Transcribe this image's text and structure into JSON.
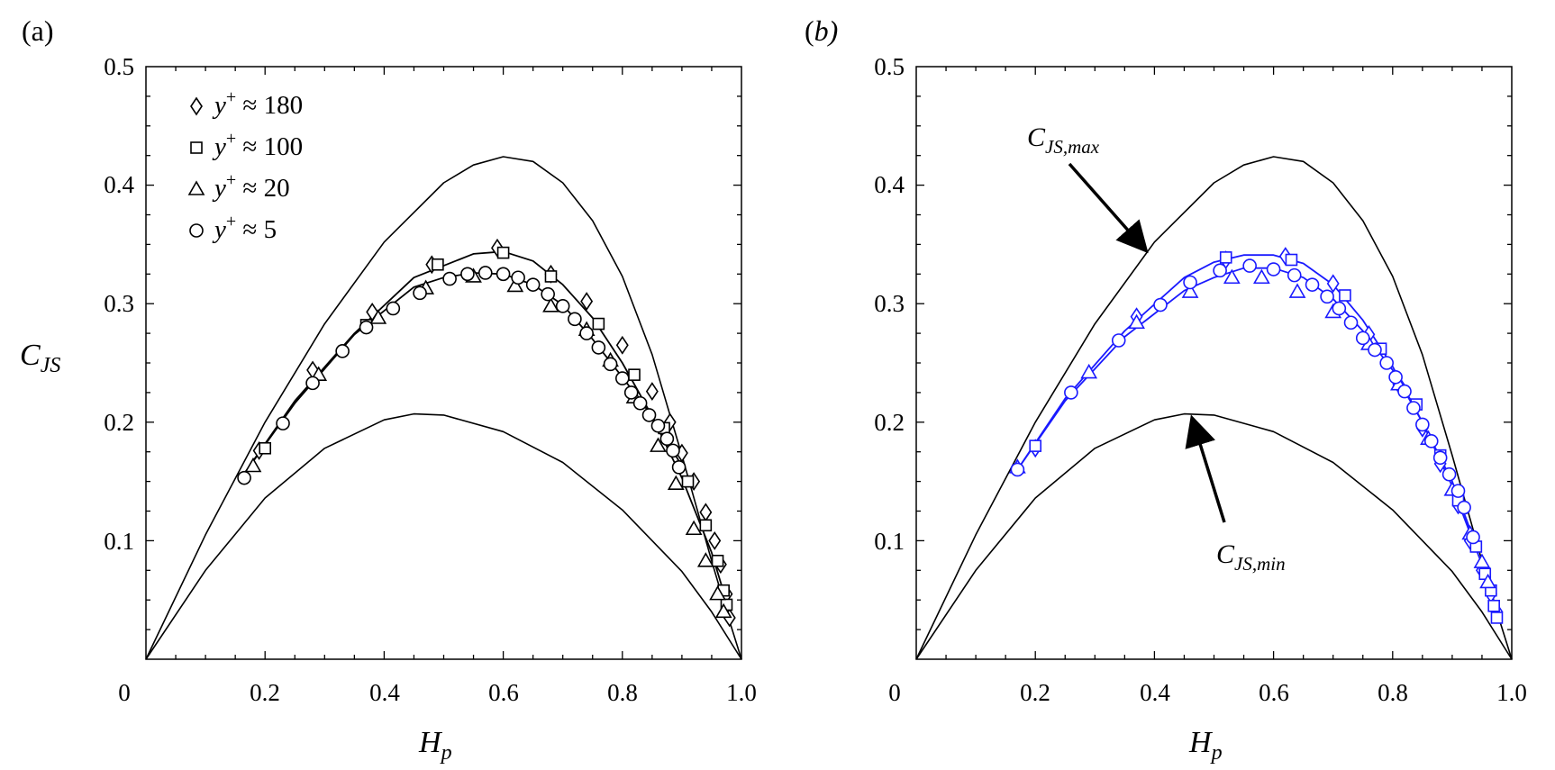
{
  "chart_data": [
    {
      "type": "line",
      "panel_label": "(a)",
      "title": "",
      "xlabel": "H",
      "xlabel_sub": "p",
      "ylabel": "C",
      "ylabel_sub": "JS",
      "xlim": [
        0,
        1.0
      ],
      "ylim": [
        0,
        0.5
      ],
      "xticks": [
        "0",
        "0.2",
        "0.4",
        "0.6",
        "0.8",
        "1.0"
      ],
      "yticks": [
        "0.1",
        "0.2",
        "0.3",
        "0.4",
        "0.5"
      ],
      "grid": false,
      "legend_position": "top-left",
      "marker_color": "#000000",
      "bounds": [
        {
          "name": "C_JS,max",
          "x": [
            0,
            0.1,
            0.2,
            0.3,
            0.4,
            0.5,
            0.55,
            0.6,
            0.65,
            0.7,
            0.75,
            0.8,
            0.85,
            0.9,
            0.95,
            0.98,
            1.0
          ],
          "y": [
            0,
            0.105,
            0.2,
            0.283,
            0.352,
            0.402,
            0.417,
            0.424,
            0.42,
            0.402,
            0.37,
            0.323,
            0.257,
            0.172,
            0.083,
            0.032,
            0
          ]
        },
        {
          "name": "C_JS,min",
          "x": [
            0,
            0.1,
            0.2,
            0.3,
            0.4,
            0.45,
            0.5,
            0.6,
            0.7,
            0.8,
            0.9,
            0.95,
            1.0
          ],
          "y": [
            0,
            0.075,
            0.136,
            0.178,
            0.202,
            0.207,
            0.206,
            0.192,
            0.166,
            0.126,
            0.074,
            0.04,
            0
          ]
        }
      ],
      "series": [
        {
          "name": "y⁺ ≈ 180",
          "label_prefix": "y",
          "label_sup": "+",
          "label_suffix": " ≈ 180",
          "marker": "diamond",
          "x": [
            0.19,
            0.28,
            0.38,
            0.48,
            0.59,
            0.68,
            0.74,
            0.8,
            0.85,
            0.88,
            0.9,
            0.92,
            0.94,
            0.955,
            0.965,
            0.975,
            0.98
          ],
          "y": [
            0.176,
            0.244,
            0.293,
            0.333,
            0.347,
            0.325,
            0.302,
            0.265,
            0.226,
            0.2,
            0.174,
            0.15,
            0.124,
            0.1,
            0.08,
            0.055,
            0.035
          ]
        },
        {
          "name": "y⁺ ≈ 100",
          "label_prefix": "y",
          "label_sup": "+",
          "label_suffix": " ≈ 100",
          "marker": "square",
          "x": [
            0.2,
            0.37,
            0.49,
            0.6,
            0.68,
            0.76,
            0.82,
            0.87,
            0.91,
            0.94,
            0.96,
            0.97,
            0.975
          ],
          "y": [
            0.178,
            0.282,
            0.333,
            0.343,
            0.323,
            0.283,
            0.24,
            0.195,
            0.15,
            0.113,
            0.083,
            0.058,
            0.046
          ]
        },
        {
          "name": "y⁺ ≈ 20",
          "label_prefix": "y",
          "label_sup": "+",
          "label_suffix": " ≈ 20",
          "marker": "triangle",
          "x": [
            0.18,
            0.29,
            0.39,
            0.47,
            0.55,
            0.62,
            0.68,
            0.74,
            0.78,
            0.82,
            0.86,
            0.89,
            0.92,
            0.94,
            0.96,
            0.97
          ],
          "y": [
            0.163,
            0.24,
            0.288,
            0.313,
            0.323,
            0.315,
            0.298,
            0.278,
            0.252,
            0.221,
            0.18,
            0.148,
            0.11,
            0.083,
            0.055,
            0.04
          ]
        },
        {
          "name": "y⁺ ≈ 5",
          "label_prefix": "y",
          "label_sup": "+",
          "label_suffix": " ≈ 5",
          "marker": "circle",
          "x": [
            0.165,
            0.23,
            0.28,
            0.33,
            0.37,
            0.415,
            0.46,
            0.51,
            0.54,
            0.57,
            0.6,
            0.625,
            0.65,
            0.675,
            0.7,
            0.72,
            0.74,
            0.76,
            0.78,
            0.8,
            0.815,
            0.83,
            0.845,
            0.86,
            0.875,
            0.885,
            0.895
          ],
          "y": [
            0.153,
            0.199,
            0.233,
            0.26,
            0.28,
            0.296,
            0.309,
            0.321,
            0.325,
            0.326,
            0.325,
            0.322,
            0.316,
            0.308,
            0.298,
            0.287,
            0.275,
            0.263,
            0.249,
            0.237,
            0.225,
            0.216,
            0.206,
            0.197,
            0.186,
            0.176,
            0.162
          ]
        }
      ],
      "fit_curves": [
        {
          "x": [
            0.16,
            0.25,
            0.35,
            0.45,
            0.55,
            0.6,
            0.65,
            0.7,
            0.75,
            0.8,
            0.85,
            0.9,
            0.95,
            0.98
          ],
          "y": [
            0.153,
            0.218,
            0.275,
            0.322,
            0.342,
            0.344,
            0.336,
            0.316,
            0.288,
            0.25,
            0.205,
            0.153,
            0.09,
            0.04
          ]
        },
        {
          "x": [
            0.16,
            0.25,
            0.35,
            0.45,
            0.5,
            0.55,
            0.6,
            0.65,
            0.7,
            0.75,
            0.8,
            0.85,
            0.9
          ],
          "y": [
            0.153,
            0.216,
            0.274,
            0.314,
            0.322,
            0.326,
            0.325,
            0.316,
            0.299,
            0.27,
            0.238,
            0.205,
            0.163
          ]
        }
      ],
      "annotations": []
    },
    {
      "type": "line",
      "panel_label": "b)",
      "title": "",
      "xlabel": "H",
      "xlabel_sub": "p",
      "ylabel": "",
      "ylabel_sub": "",
      "xlim": [
        0,
        1.0
      ],
      "ylim": [
        0,
        0.5
      ],
      "xticks": [
        "0",
        "0.2",
        "0.4",
        "0.6",
        "0.8",
        "1.0"
      ],
      "yticks": [
        "0.1",
        "0.2",
        "0.3",
        "0.4",
        "0.5"
      ],
      "grid": false,
      "marker_color": "#1a1aff",
      "bounds": [
        {
          "name": "C_JS,max",
          "x": [
            0,
            0.1,
            0.2,
            0.3,
            0.4,
            0.5,
            0.55,
            0.6,
            0.65,
            0.7,
            0.75,
            0.8,
            0.85,
            0.9,
            0.95,
            0.98,
            1.0
          ],
          "y": [
            0,
            0.105,
            0.2,
            0.283,
            0.352,
            0.402,
            0.417,
            0.424,
            0.42,
            0.402,
            0.37,
            0.323,
            0.257,
            0.172,
            0.083,
            0.032,
            0
          ]
        },
        {
          "name": "C_JS,min",
          "x": [
            0,
            0.1,
            0.2,
            0.3,
            0.4,
            0.45,
            0.5,
            0.6,
            0.7,
            0.8,
            0.9,
            0.95,
            1.0
          ],
          "y": [
            0,
            0.075,
            0.136,
            0.178,
            0.202,
            0.207,
            0.206,
            0.192,
            0.166,
            0.126,
            0.074,
            0.04,
            0
          ]
        }
      ],
      "series": [
        {
          "name": "y⁺ ≈ 180",
          "marker": "diamond",
          "x": [
            0.2,
            0.37,
            0.52,
            0.62,
            0.7,
            0.76,
            0.81,
            0.85,
            0.88,
            0.91,
            0.93,
            0.95,
            0.965,
            0.975
          ],
          "y": [
            0.178,
            0.289,
            0.337,
            0.34,
            0.317,
            0.274,
            0.232,
            0.195,
            0.165,
            0.13,
            0.1,
            0.075,
            0.055,
            0.04
          ]
        },
        {
          "name": "y⁺ ≈ 100",
          "marker": "square",
          "x": [
            0.2,
            0.52,
            0.63,
            0.72,
            0.78,
            0.84,
            0.88,
            0.91,
            0.94,
            0.955,
            0.965,
            0.97,
            0.975
          ],
          "y": [
            0.18,
            0.339,
            0.337,
            0.307,
            0.262,
            0.215,
            0.172,
            0.134,
            0.095,
            0.072,
            0.058,
            0.045,
            0.035
          ]
        },
        {
          "name": "y⁺ ≈ 20",
          "marker": "triangle",
          "x": [
            0.17,
            0.29,
            0.37,
            0.46,
            0.53,
            0.58,
            0.64,
            0.7,
            0.76,
            0.81,
            0.86,
            0.9,
            0.93,
            0.95,
            0.96
          ],
          "y": [
            0.162,
            0.242,
            0.284,
            0.31,
            0.322,
            0.322,
            0.31,
            0.293,
            0.266,
            0.232,
            0.186,
            0.143,
            0.106,
            0.082,
            0.065
          ]
        },
        {
          "name": "y⁺ ≈ 5",
          "marker": "circle",
          "x": [
            0.17,
            0.26,
            0.34,
            0.41,
            0.46,
            0.51,
            0.56,
            0.6,
            0.635,
            0.665,
            0.69,
            0.71,
            0.73,
            0.75,
            0.77,
            0.79,
            0.805,
            0.82,
            0.835,
            0.85,
            0.865,
            0.88,
            0.895,
            0.91,
            0.92,
            0.935
          ],
          "y": [
            0.16,
            0.225,
            0.269,
            0.299,
            0.318,
            0.328,
            0.332,
            0.329,
            0.324,
            0.316,
            0.306,
            0.296,
            0.284,
            0.271,
            0.261,
            0.25,
            0.238,
            0.226,
            0.212,
            0.198,
            0.184,
            0.17,
            0.156,
            0.142,
            0.128,
            0.103
          ]
        }
      ],
      "fit_curves": [
        {
          "x": [
            0.17,
            0.25,
            0.35,
            0.45,
            0.5,
            0.55,
            0.6,
            0.65,
            0.7,
            0.75,
            0.8,
            0.85,
            0.9,
            0.95,
            0.975
          ],
          "y": [
            0.16,
            0.22,
            0.277,
            0.322,
            0.335,
            0.341,
            0.341,
            0.334,
            0.316,
            0.286,
            0.247,
            0.2,
            0.146,
            0.08,
            0.038
          ]
        },
        {
          "x": [
            0.17,
            0.25,
            0.35,
            0.45,
            0.5,
            0.55,
            0.6,
            0.65,
            0.7,
            0.75,
            0.8,
            0.85,
            0.9,
            0.935
          ],
          "y": [
            0.16,
            0.218,
            0.272,
            0.311,
            0.322,
            0.33,
            0.33,
            0.322,
            0.304,
            0.277,
            0.244,
            0.2,
            0.15,
            0.103
          ]
        }
      ],
      "annotations": [
        {
          "text": "C",
          "sub": "JS,max",
          "points_to": "C_JS,max"
        },
        {
          "text": "C",
          "sub": "JS,min",
          "points_to": "C_JS,min"
        }
      ]
    }
  ]
}
